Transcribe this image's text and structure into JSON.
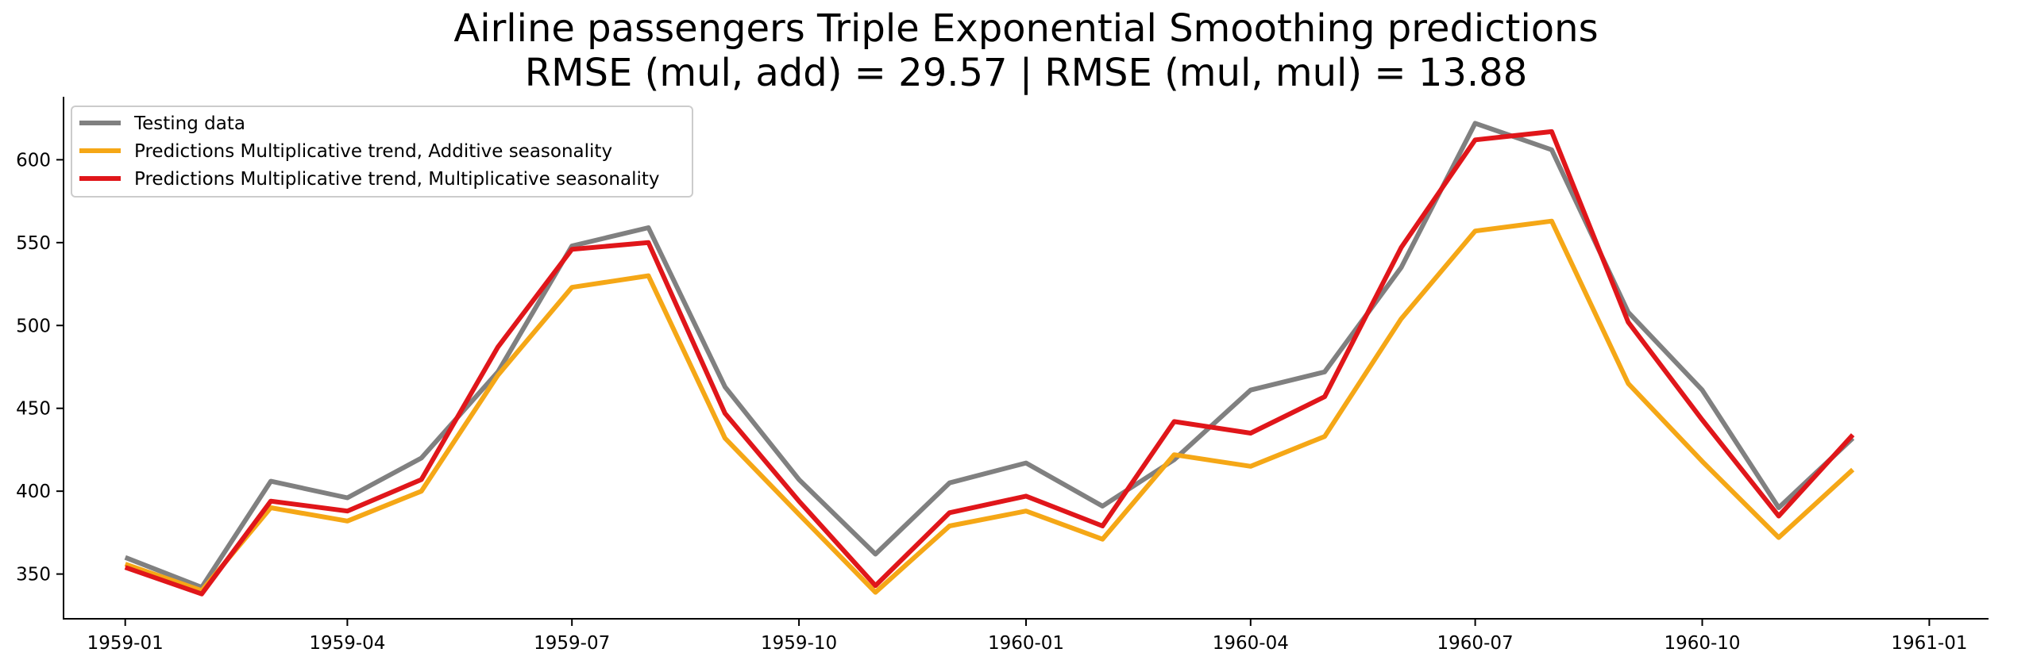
{
  "chart_data": {
    "type": "line",
    "title": "Airline passengers Triple Exponential Smoothing predictions",
    "subtitle": "RMSE (mul, add) = 29.57 | RMSE (mul, mul) = 13.88",
    "xlabel": "",
    "ylabel": "",
    "x": [
      "1959-01",
      "1959-02",
      "1959-03",
      "1959-04",
      "1959-05",
      "1959-06",
      "1959-07",
      "1959-08",
      "1959-09",
      "1959-10",
      "1959-11",
      "1959-12",
      "1960-01",
      "1960-02",
      "1960-03",
      "1960-04",
      "1960-05",
      "1960-06",
      "1960-07",
      "1960-08",
      "1960-09",
      "1960-10",
      "1960-11",
      "1960-12"
    ],
    "x_ticks": [
      "1959-01",
      "1959-04",
      "1959-07",
      "1959-10",
      "1960-01",
      "1960-04",
      "1960-07",
      "1960-10",
      "1961-01"
    ],
    "y_ticks": [
      350,
      400,
      450,
      500,
      550,
      600
    ],
    "xlim": [
      "1958-12-07",
      "1961-01-25"
    ],
    "ylim": [
      323,
      638
    ],
    "grid": false,
    "legend_position": "top-left",
    "series": [
      {
        "name": "Testing data",
        "color": "#808080",
        "values": [
          360,
          342,
          406,
          396,
          420,
          472,
          548,
          559,
          463,
          407,
          362,
          405,
          417,
          391,
          419,
          461,
          472,
          535,
          622,
          606,
          508,
          461,
          390,
          432
        ]
      },
      {
        "name": "Predictions Multiplicative trend, Additive seasonality",
        "color": "#f5a716",
        "values": [
          356,
          340,
          390,
          382,
          400,
          470,
          523,
          530,
          432,
          386,
          339,
          379,
          388,
          371,
          422,
          415,
          433,
          504,
          557,
          563,
          465,
          418,
          372,
          413
        ]
      },
      {
        "name": "Predictions Multiplicative trend, Multiplicative seasonality",
        "color": "#e0161a",
        "values": [
          354,
          338,
          394,
          388,
          407,
          487,
          546,
          550,
          447,
          394,
          343,
          387,
          397,
          379,
          442,
          435,
          457,
          547,
          612,
          617,
          502,
          443,
          385,
          434
        ]
      }
    ]
  }
}
